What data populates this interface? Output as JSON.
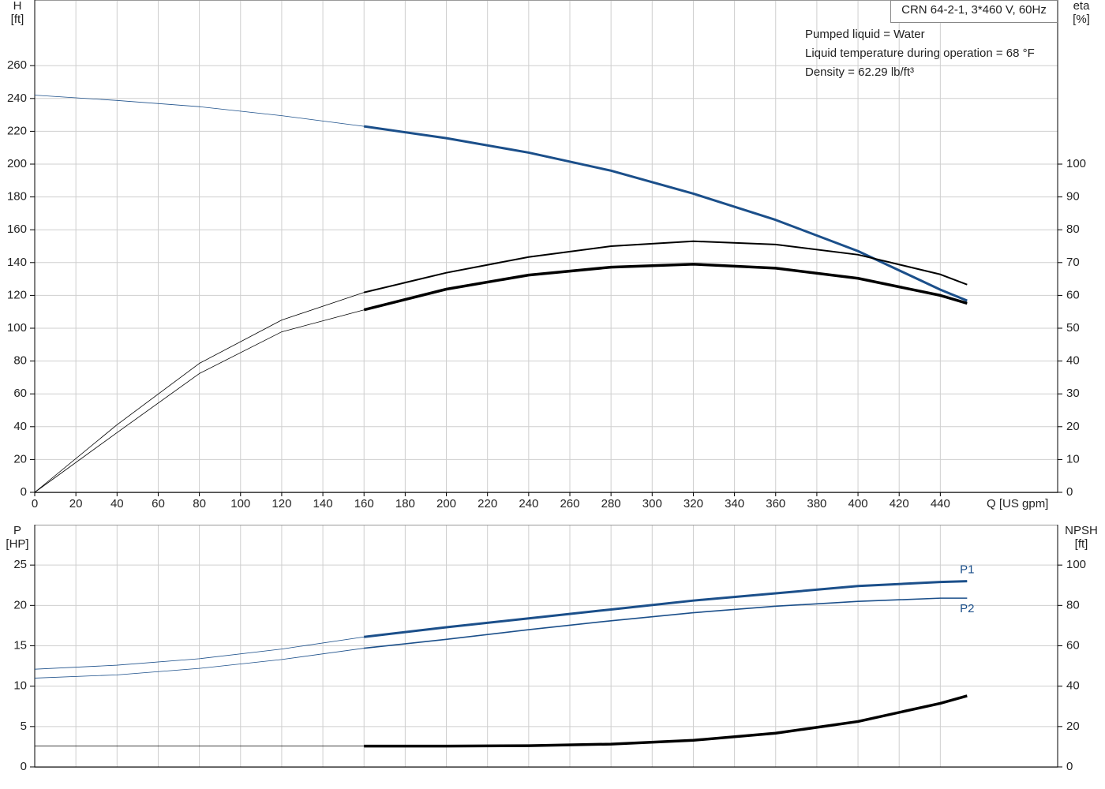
{
  "chart_data": [
    {
      "type": "line",
      "title": "CRN 64-2-1, 3*460 V, 60Hz",
      "annotations": [
        "Pumped liquid = Water",
        "Liquid temperature during operation = 68 °F",
        "Density = 62.29 lb/ft³"
      ],
      "xlabel": "Q [US gpm]",
      "ylabel": [
        "H",
        "[ft]"
      ],
      "y2label": [
        "eta",
        "[%]"
      ],
      "xlim": [
        0,
        497
      ],
      "ylim": [
        0,
        300
      ],
      "y2lim": [
        0,
        150
      ],
      "xticks": [
        0,
        20,
        40,
        60,
        80,
        100,
        120,
        140,
        160,
        180,
        200,
        220,
        240,
        260,
        280,
        300,
        320,
        340,
        360,
        380,
        400,
        420,
        440
      ],
      "yticks": [
        0,
        20,
        40,
        60,
        80,
        100,
        120,
        140,
        160,
        180,
        200,
        220,
        240,
        260
      ],
      "y2ticks": [
        0,
        10,
        20,
        30,
        40,
        50,
        60,
        70,
        80,
        90,
        100
      ],
      "show_xtick_labels": true,
      "grid": true,
      "bold_from": 160,
      "x": [
        0,
        40,
        80,
        120,
        160,
        200,
        240,
        280,
        320,
        360,
        400,
        440,
        453
      ],
      "series": [
        {
          "color": "#1b4f8a",
          "width": 3,
          "axis": "y",
          "values": [
            242,
            238.8,
            235,
            229.5,
            223,
            215.8,
            207,
            196,
            182,
            166,
            147,
            123.5,
            116.8
          ]
        },
        {
          "color": "#000000",
          "width": 2,
          "axis": "y2",
          "values": [
            0,
            20.6,
            39.3,
            52.5,
            60.9,
            66.9,
            71.7,
            75,
            76.5,
            75.5,
            72.4,
            66.4,
            63.3
          ]
        },
        {
          "color": "#000000",
          "width": 3.5,
          "axis": "y2",
          "values": [
            0,
            18.2,
            36.2,
            48.9,
            55.6,
            61.9,
            66.2,
            68.6,
            69.5,
            68.3,
            65.2,
            60,
            57.6
          ]
        }
      ]
    },
    {
      "type": "line",
      "ylabel": [
        "P",
        "[HP]"
      ],
      "y2label": [
        "NPSH",
        "[ft]"
      ],
      "xlim": [
        0,
        497
      ],
      "ylim": [
        0,
        30
      ],
      "y2lim": [
        0,
        120
      ],
      "xticks": [
        0,
        20,
        40,
        60,
        80,
        100,
        120,
        140,
        160,
        180,
        200,
        220,
        240,
        260,
        280,
        300,
        320,
        340,
        360,
        380,
        400,
        420,
        440
      ],
      "yticks": [
        0,
        5,
        10,
        15,
        20,
        25
      ],
      "y2ticks": [
        0,
        20,
        40,
        60,
        80,
        100
      ],
      "show_xtick_labels": false,
      "grid": true,
      "bold_from": 160,
      "x": [
        0,
        40,
        80,
        120,
        160,
        200,
        240,
        280,
        320,
        360,
        400,
        440,
        453
      ],
      "series": [
        {
          "name": "P1",
          "label_position": "above",
          "color": "#1b4f8a",
          "width": 3,
          "axis": "y",
          "values": [
            12.1,
            12.6,
            13.4,
            14.6,
            16.1,
            17.3,
            18.4,
            19.5,
            20.6,
            21.5,
            22.4,
            22.9,
            23.0
          ]
        },
        {
          "name": "P2",
          "label_position": "below",
          "color": "#1b4f8a",
          "width": 1.6,
          "axis": "y",
          "values": [
            11.0,
            11.4,
            12.2,
            13.3,
            14.7,
            15.8,
            17.0,
            18.1,
            19.1,
            19.9,
            20.5,
            20.9,
            20.9
          ]
        },
        {
          "color": "#000000",
          "width": 3.5,
          "axis": "y2",
          "values": [
            10.3,
            10.3,
            10.3,
            10.3,
            10.3,
            10.3,
            10.5,
            11.3,
            13.2,
            16.7,
            22.5,
            31.5,
            35.2
          ]
        }
      ]
    }
  ]
}
